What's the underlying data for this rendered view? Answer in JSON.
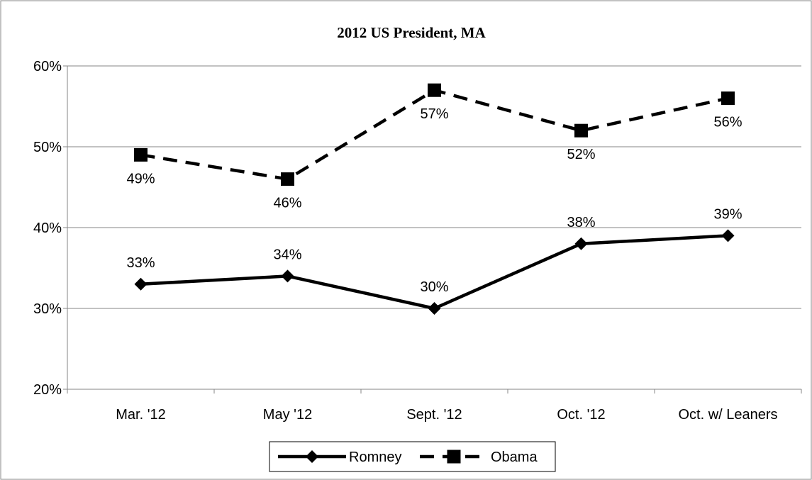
{
  "chart_data": {
    "type": "line",
    "title": "2012 US President, MA",
    "xlabel": "",
    "ylabel": "",
    "categories": [
      "Mar. '12",
      "May '12",
      "Sept. '12",
      "Oct. '12",
      "Oct. w/ Leaners"
    ],
    "ylim": [
      0.2,
      0.6
    ],
    "yticks": [
      0.2,
      0.3,
      0.4,
      0.5,
      0.6
    ],
    "ytick_labels": [
      "20%",
      "30%",
      "40%",
      "50%",
      "60%"
    ],
    "grid": true,
    "legend_position": "bottom",
    "series": [
      {
        "name": "Romney",
        "values": [
          0.33,
          0.34,
          0.3,
          0.38,
          0.39
        ],
        "labels": [
          "33%",
          "34%",
          "30%",
          "38%",
          "39%"
        ],
        "line_style": "solid",
        "marker": "diamond",
        "color": "#000000"
      },
      {
        "name": "Obama",
        "values": [
          0.49,
          0.46,
          0.57,
          0.52,
          0.56
        ],
        "labels": [
          "49%",
          "46%",
          "57%",
          "52%",
          "56%"
        ],
        "line_style": "dashed",
        "marker": "square",
        "color": "#000000"
      }
    ]
  }
}
